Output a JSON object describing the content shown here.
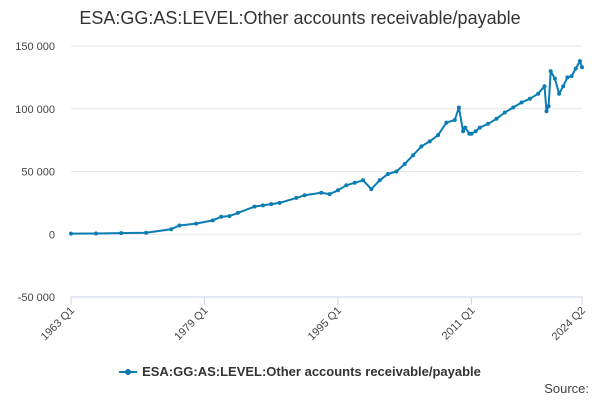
{
  "chart_data": {
    "type": "line",
    "title": "ESA:GG:AS:LEVEL:Other accounts receivable/payable",
    "xlabel": "",
    "ylabel": "",
    "x_tick_labels": [
      "1963 Q1",
      "1979 Q1",
      "1995 Q1",
      "2011 Q1",
      "2024 Q2"
    ],
    "y_tick_labels": [
      "150 000",
      "100 000",
      "50 000",
      "0",
      "-50 000"
    ],
    "ylim": [
      -50000,
      150000
    ],
    "xlim": [
      "1963 Q1",
      "2024 Q2"
    ],
    "grid": true,
    "legend_position": "bottom",
    "color": "#0b7cb4",
    "series": [
      {
        "name": "ESA:GG:AS:LEVEL:Other accounts receivable/payable",
        "x": [
          "1963 Q1",
          "1966 Q1",
          "1969 Q1",
          "1972 Q1",
          "1975 Q1",
          "1976 Q1",
          "1978 Q1",
          "1980 Q1",
          "1981 Q1",
          "1982 Q1",
          "1983 Q1",
          "1985 Q1",
          "1986 Q1",
          "1987 Q1",
          "1988 Q1",
          "1990 Q1",
          "1991 Q1",
          "1993 Q1",
          "1994 Q1",
          "1995 Q1",
          "1996 Q1",
          "1997 Q1",
          "1998 Q1",
          "1999 Q1",
          "2000 Q1",
          "2001 Q1",
          "2002 Q1",
          "2003 Q1",
          "2004 Q1",
          "2005 Q1",
          "2006 Q1",
          "2007 Q1",
          "2008 Q1",
          "2009 Q1",
          "2009 Q3",
          "2010 Q1",
          "2010 Q2",
          "2010 Q4",
          "2011 Q1",
          "2011 Q3",
          "2012 Q1",
          "2013 Q1",
          "2014 Q1",
          "2015 Q1",
          "2016 Q1",
          "2017 Q1",
          "2018 Q1",
          "2019 Q1",
          "2019 Q4",
          "2020 Q1",
          "2020 Q2",
          "2020 Q3",
          "2021 Q1",
          "2021 Q3",
          "2022 Q1",
          "2022 Q3",
          "2023 Q1",
          "2023 Q3",
          "2024 Q1",
          "2024 Q2"
        ],
        "values": [
          500,
          600,
          900,
          1200,
          4000,
          7000,
          8500,
          11000,
          14000,
          14500,
          17000,
          22000,
          23000,
          24000,
          25000,
          29000,
          31000,
          33000,
          32000,
          35000,
          39000,
          41000,
          43000,
          36000,
          43000,
          48000,
          50000,
          56000,
          63000,
          70000,
          74000,
          79000,
          89000,
          91000,
          101000,
          82000,
          85000,
          80000,
          80000,
          82000,
          85000,
          88000,
          92000,
          97000,
          101000,
          105000,
          108000,
          112000,
          118000,
          98000,
          102000,
          130000,
          124000,
          112000,
          118000,
          125000,
          126000,
          132000,
          138000,
          133000
        ]
      }
    ]
  },
  "source_label": "Source:"
}
